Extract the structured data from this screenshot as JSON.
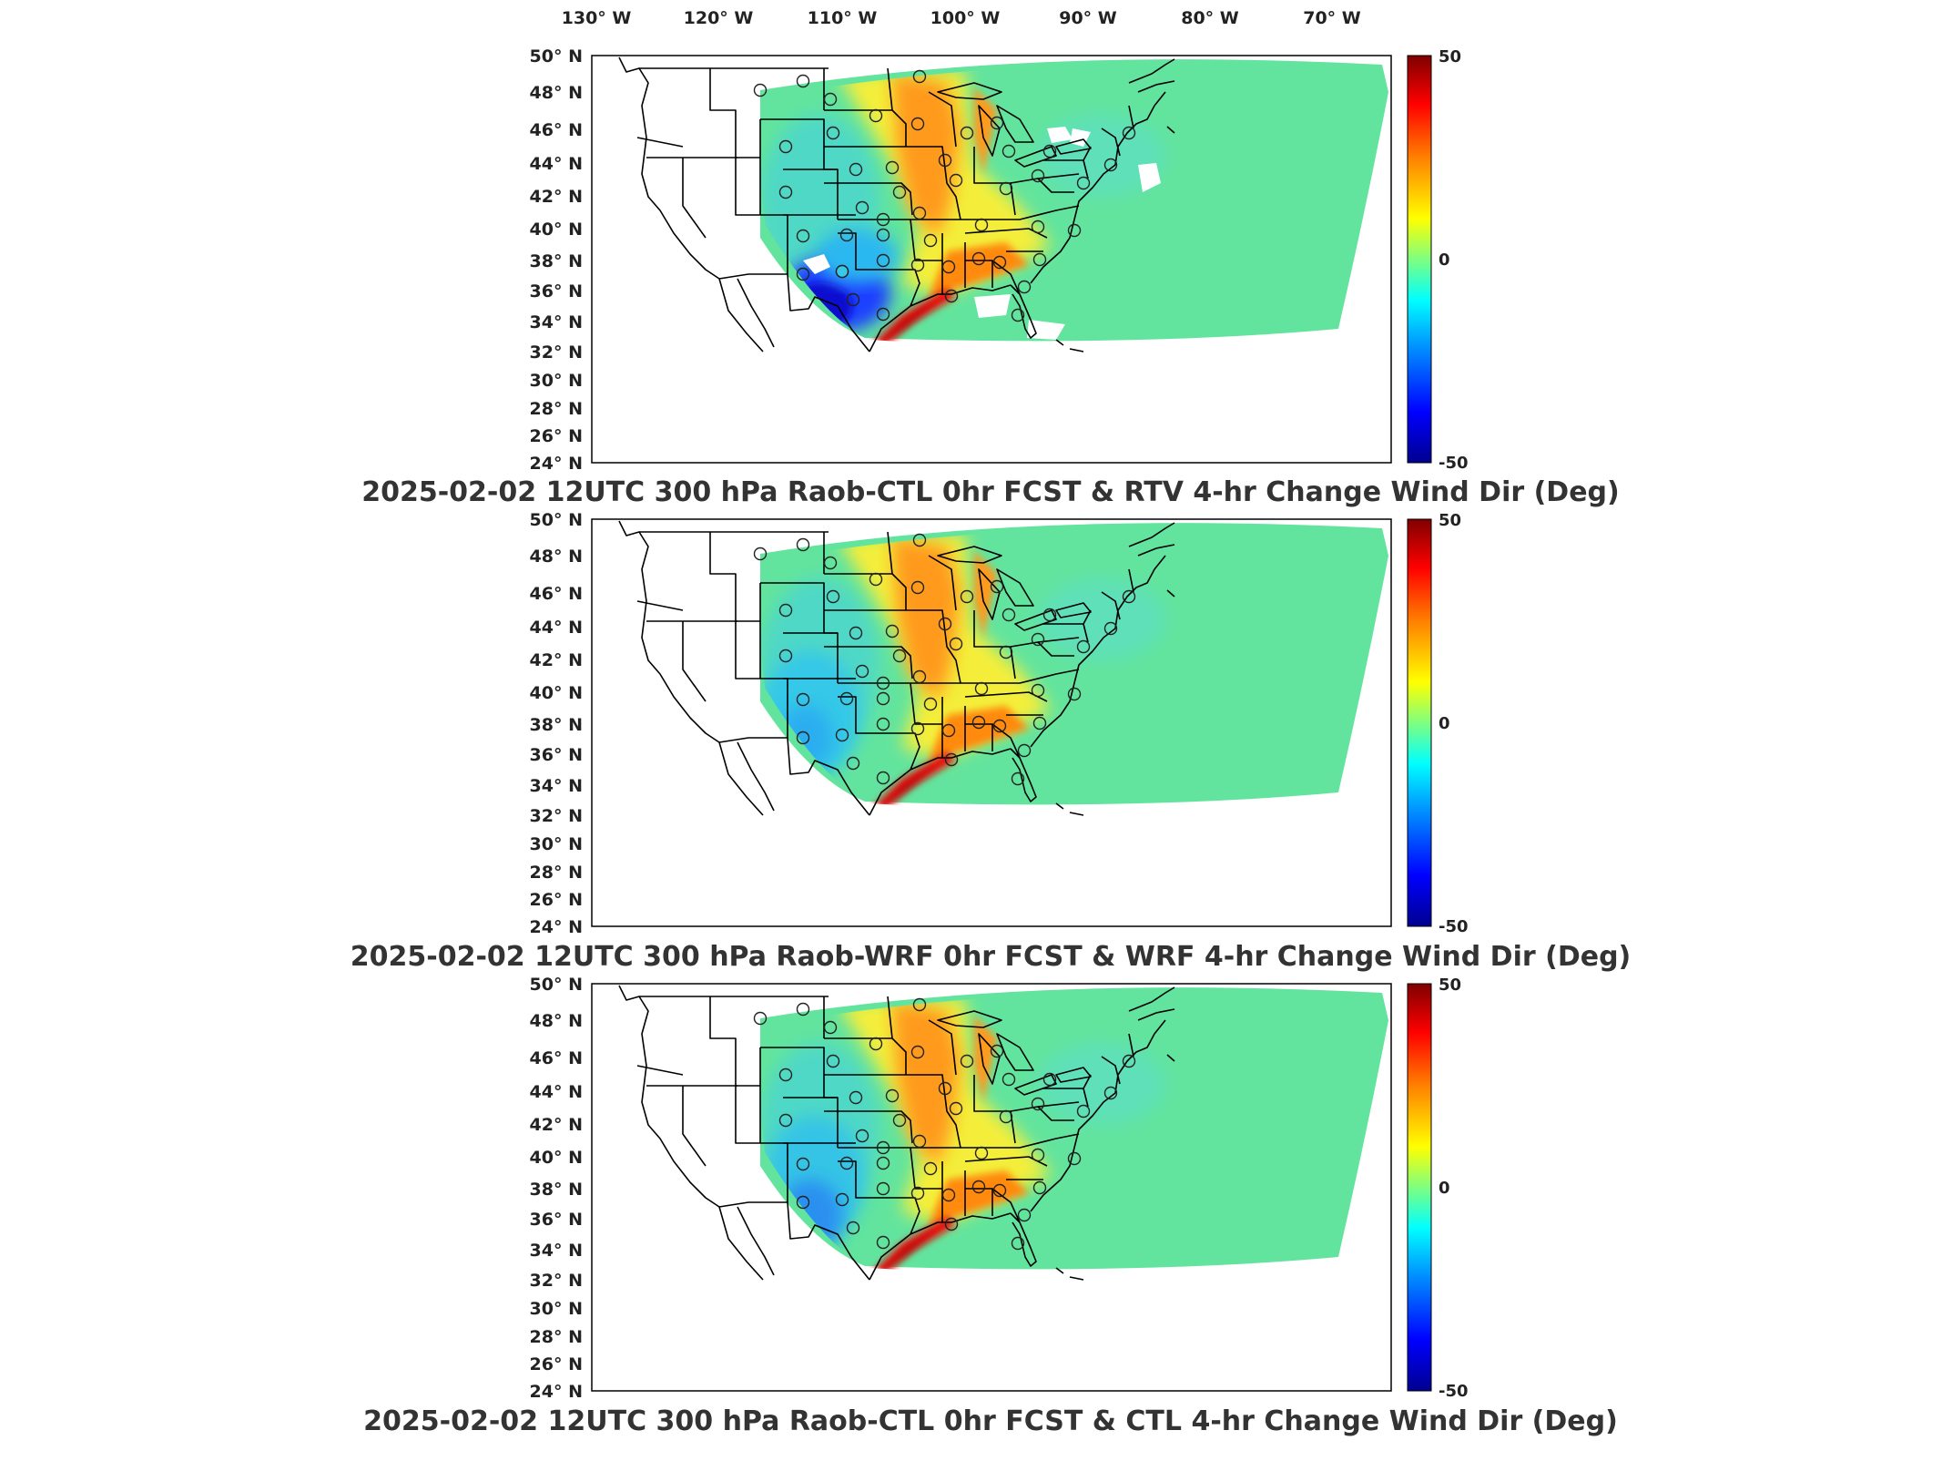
{
  "figure": {
    "lon_labels": [
      "130° W",
      "120° W",
      "110° W",
      "100° W",
      "90° W",
      "80° W",
      "70° W"
    ],
    "lat_labels": [
      "50° N",
      "48° N",
      "46° N",
      "44° N",
      "42° N",
      "40° N",
      "38° N",
      "36° N",
      "34° N",
      "32° N",
      "30° N",
      "28° N",
      "26° N",
      "24° N"
    ],
    "colorbar": {
      "max_label": "50",
      "mid_label": "0",
      "min_label": "-50"
    }
  },
  "panels": [
    {
      "id": "p1",
      "title": "2025-02-02 12UTC 300 hPa Raob-CTL 0hr FCST & RTV 4-hr Change Wind Dir (Deg)"
    },
    {
      "id": "p2",
      "title": "2025-02-02 12UTC 300 hPa Raob-WRF 0hr FCST & WRF 4-hr Change Wind Dir (Deg)"
    },
    {
      "id": "p3",
      "title": "2025-02-02 12UTC 300 hPa Raob-CTL 0hr FCST & CTL 4-hr Change Wind Dir (Deg)"
    }
  ],
  "colors": {
    "colormap": [
      "#00008f",
      "#0000ff",
      "#00a0ff",
      "#00ffff",
      "#7fff7f",
      "#ffff00",
      "#ff8000",
      "#ff0000",
      "#800000"
    ],
    "background_field": "#62e49e",
    "outline": "#000000"
  }
}
